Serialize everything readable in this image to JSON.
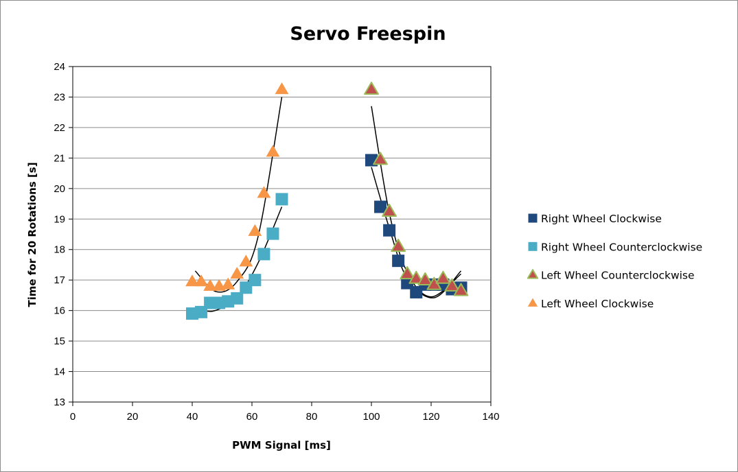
{
  "chart_data": {
    "type": "scatter",
    "title": "Servo Freespin",
    "xlabel": "PWM Signal [ms]",
    "ylabel": "Time for 20 Rotations [s]",
    "xlim": [
      0,
      140
    ],
    "ylim": [
      13,
      24
    ],
    "xticks": [
      0,
      20,
      40,
      60,
      80,
      100,
      120,
      140
    ],
    "yticks": [
      13,
      14,
      15,
      16,
      17,
      18,
      19,
      20,
      21,
      22,
      23,
      24
    ],
    "grid": "horizontal",
    "legend_position": "right",
    "series": [
      {
        "name": "Right Wheel Clockwise",
        "marker": "square",
        "color": "#1f497d",
        "points": [
          [
            100,
            20.93
          ],
          [
            103,
            19.4
          ],
          [
            106,
            18.63
          ],
          [
            109,
            17.63
          ],
          [
            112,
            16.9
          ],
          [
            115,
            16.6
          ],
          [
            118,
            16.85
          ],
          [
            121,
            16.85
          ],
          [
            124,
            16.85
          ],
          [
            127,
            16.7
          ],
          [
            130,
            16.75
          ]
        ]
      },
      {
        "name": "Right Wheel Counterclockwise",
        "marker": "square",
        "color": "#4bacc6",
        "points": [
          [
            40,
            15.9
          ],
          [
            43,
            15.95
          ],
          [
            46,
            16.25
          ],
          [
            49,
            16.25
          ],
          [
            52,
            16.3
          ],
          [
            55,
            16.4
          ],
          [
            58,
            16.75
          ],
          [
            61,
            17.0
          ],
          [
            64,
            17.85
          ],
          [
            67,
            18.52
          ],
          [
            70,
            19.65
          ]
        ]
      },
      {
        "name": "Left Wheel Counterclockwise",
        "marker": "triangle",
        "color": "#c0504d",
        "edge_color": "#9bbb59",
        "points": [
          [
            100,
            23.25
          ],
          [
            103,
            20.95
          ],
          [
            106,
            19.25
          ],
          [
            109,
            18.1
          ],
          [
            112,
            17.2
          ],
          [
            115,
            17.05
          ],
          [
            118,
            17.0
          ],
          [
            121,
            16.85
          ],
          [
            124,
            17.05
          ],
          [
            127,
            16.8
          ],
          [
            130,
            16.65
          ]
        ]
      },
      {
        "name": "Left Wheel Clockwise",
        "marker": "triangle",
        "color": "#f79646",
        "points": [
          [
            40,
            16.95
          ],
          [
            43,
            16.95
          ],
          [
            46,
            16.8
          ],
          [
            49,
            16.8
          ],
          [
            52,
            16.85
          ],
          [
            55,
            17.2
          ],
          [
            58,
            17.6
          ],
          [
            61,
            18.6
          ],
          [
            64,
            19.85
          ],
          [
            67,
            21.2
          ],
          [
            70,
            23.25
          ]
        ]
      }
    ],
    "trendlines": [
      {
        "x_range": [
          41,
          70
        ],
        "points": [
          [
            41,
            17.3
          ],
          [
            48,
            16.62
          ],
          [
            55,
            16.95
          ],
          [
            62,
            18.4
          ],
          [
            70,
            23.0
          ]
        ]
      },
      {
        "x_range": [
          41,
          70
        ],
        "points": [
          [
            41,
            16.12
          ],
          [
            47,
            15.98
          ],
          [
            55,
            16.45
          ],
          [
            62,
            17.55
          ],
          [
            70,
            19.4
          ]
        ]
      },
      {
        "x_range": [
          100,
          130
        ],
        "points": [
          [
            100,
            22.7
          ],
          [
            106,
            19.2
          ],
          [
            112,
            17.25
          ],
          [
            120,
            16.45
          ],
          [
            130,
            17.2
          ]
        ]
      },
      {
        "x_range": [
          100,
          130
        ],
        "points": [
          [
            100,
            20.7
          ],
          [
            106,
            18.7
          ],
          [
            112,
            17.05
          ],
          [
            121,
            16.42
          ],
          [
            130,
            17.3
          ]
        ]
      }
    ]
  }
}
